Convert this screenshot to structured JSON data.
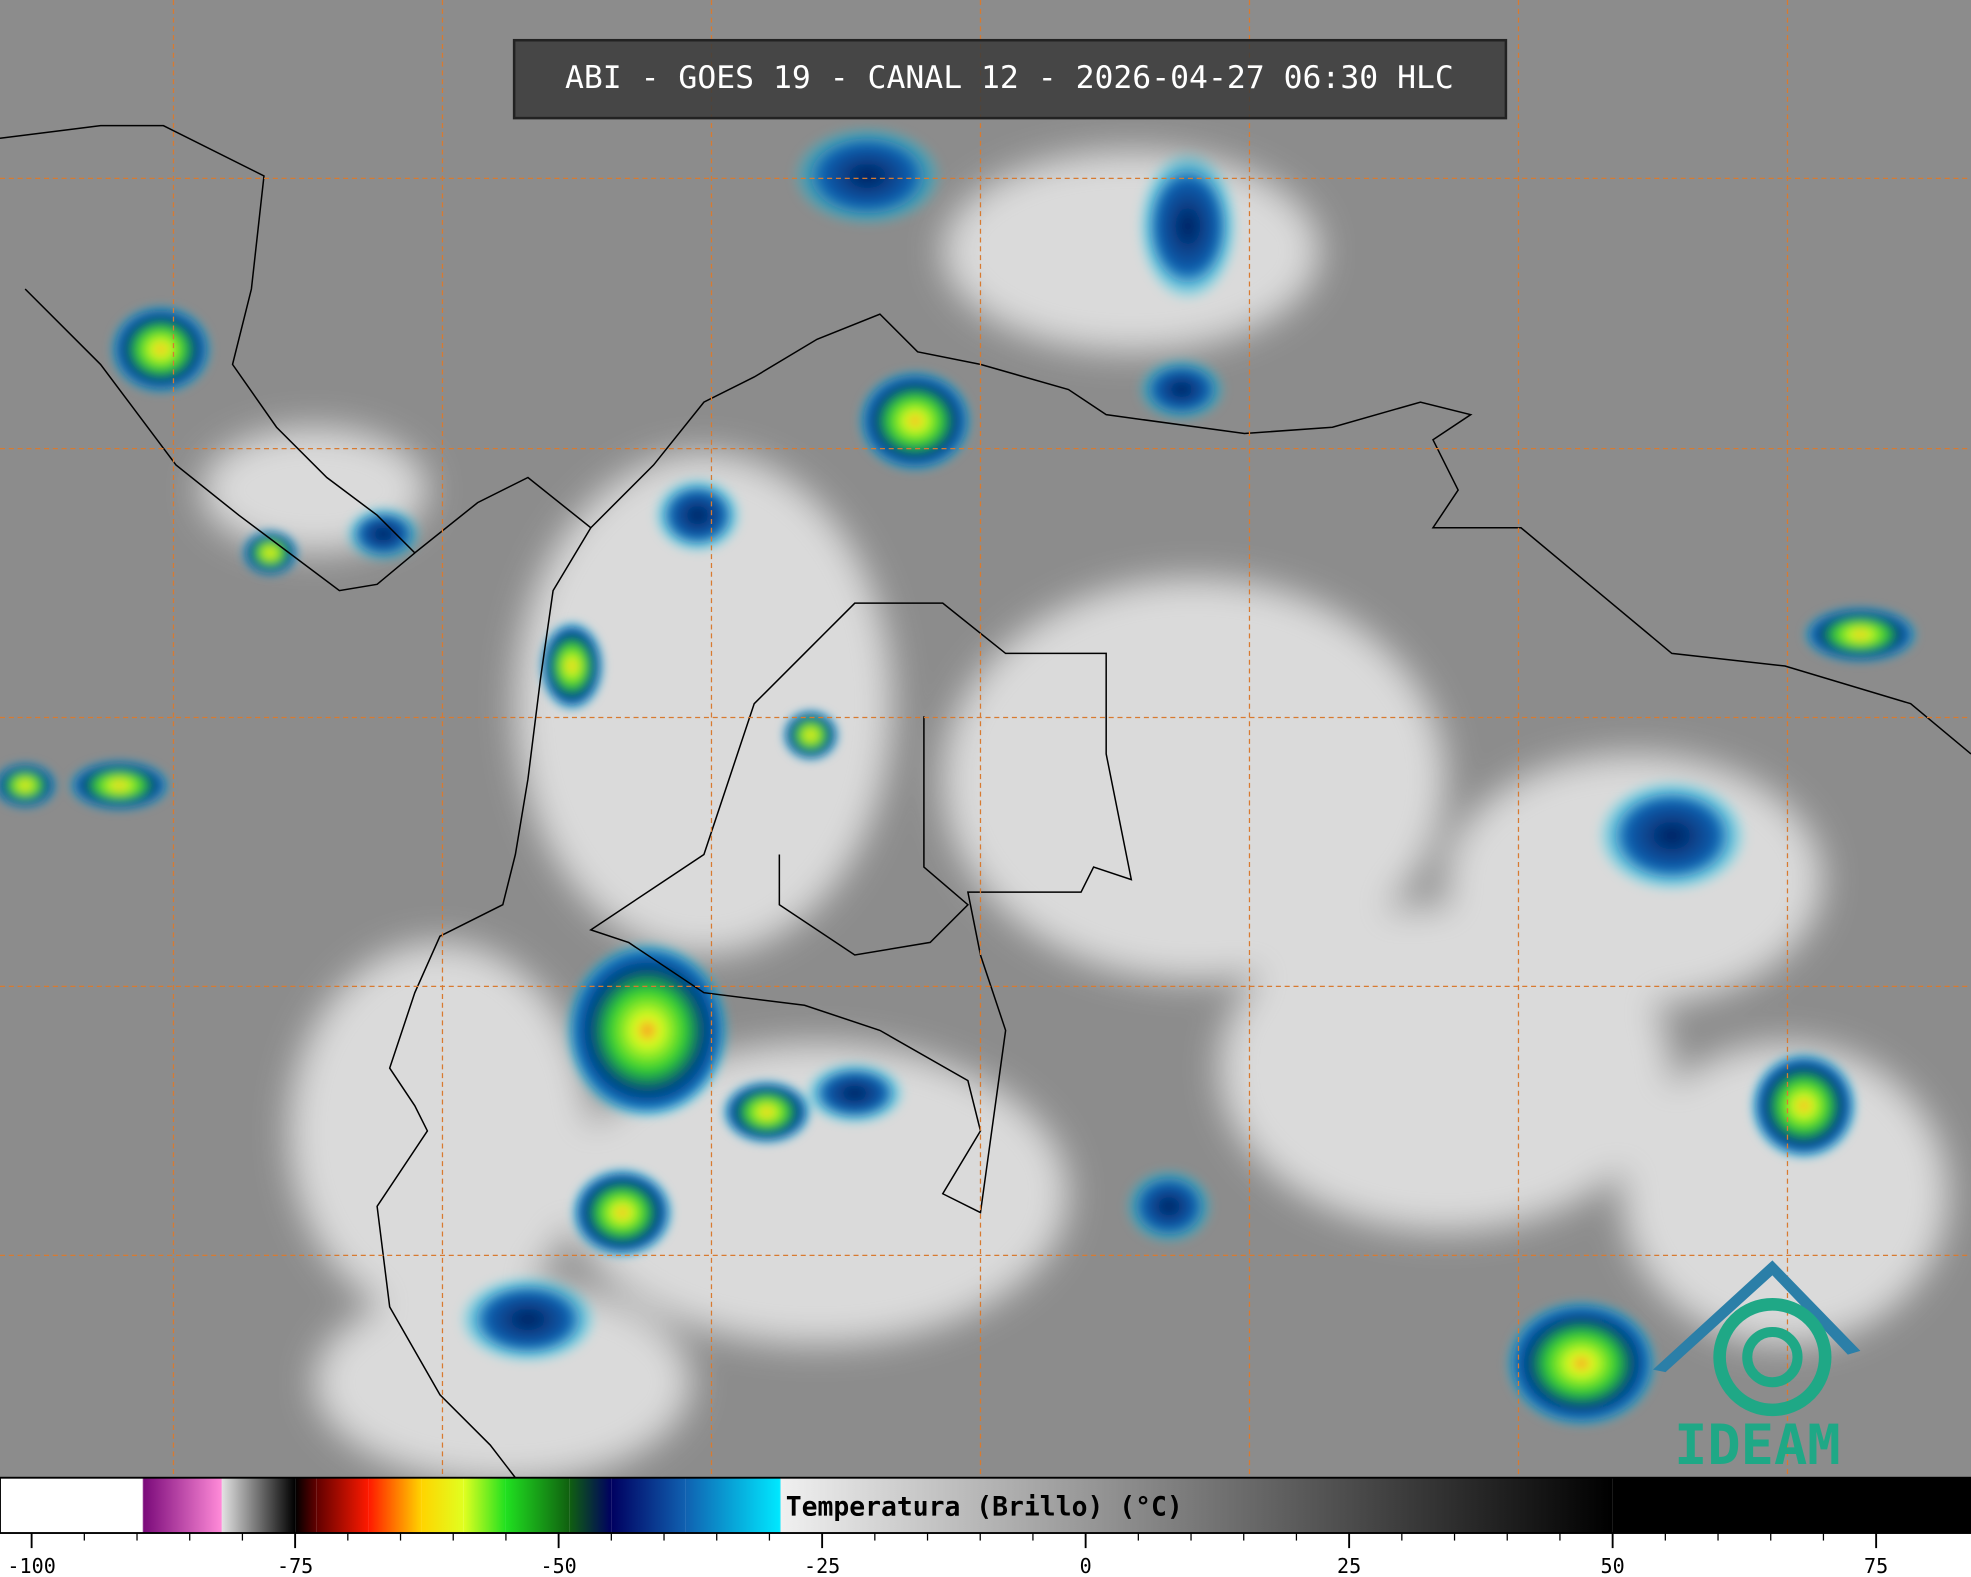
{
  "header": {
    "title": "ABI - GOES 19 - CANAL 12 - 2026-04-27 06:30 HLC"
  },
  "colorbar": {
    "label": "Temperatura (Brillo) (°C)",
    "xlim": [
      -103,
      84
    ],
    "ticks": [
      -100,
      -75,
      -50,
      -25,
      0,
      25,
      50,
      75
    ],
    "stops": [
      {
        "value": -103,
        "color": "#ffffff"
      },
      {
        "value": -89.5,
        "color": "#ffffff"
      },
      {
        "value": -89.4,
        "color": "#7a0a7a"
      },
      {
        "value": -82,
        "color": "#ff8ad8"
      },
      {
        "value": -81.9,
        "color": "#e0e0e0"
      },
      {
        "value": -75,
        "color": "#000000"
      },
      {
        "value": -73,
        "color": "#600000"
      },
      {
        "value": -68,
        "color": "#ff1a00"
      },
      {
        "value": -63,
        "color": "#ffd400"
      },
      {
        "value": -59,
        "color": "#e0ff20"
      },
      {
        "value": -55,
        "color": "#20e020"
      },
      {
        "value": -49,
        "color": "#106010"
      },
      {
        "value": -45,
        "color": "#000060"
      },
      {
        "value": -38,
        "color": "#1060b0"
      },
      {
        "value": -29,
        "color": "#00e8ff"
      },
      {
        "value": -28.9,
        "color": "#f0f0f0"
      },
      {
        "value": 50,
        "color": "#000000"
      },
      {
        "value": 84,
        "color": "#000000"
      }
    ]
  },
  "logo": {
    "text": "IDEAM"
  }
}
